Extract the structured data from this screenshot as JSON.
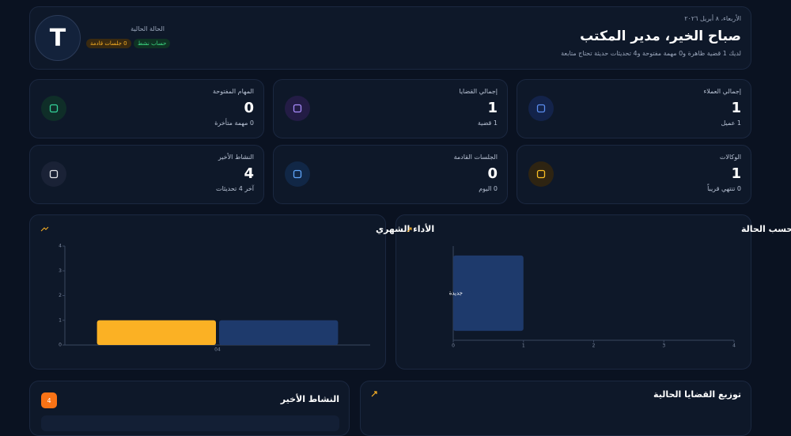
{
  "header": {
    "date": "الأربعاء، ٨ أبريل ٢٠٢٦",
    "title": "صباح الخير، مدير المكتب",
    "subtitle": "لديك 1 قضية ظاهرة و0 مهمة مفتوحة و4 تحديثات حديثة تحتاج متابعة",
    "avatar": "T",
    "status_label": "الحالة الحالية",
    "badges": [
      "حساب نشط",
      "0 جلسات قادمة"
    ]
  },
  "stats": [
    {
      "label": "إجمالي العملاء",
      "value": 1,
      "note": "1 عميل"
    },
    {
      "label": "إجمالي القضايا",
      "value": 1,
      "note": "1 قضية"
    },
    {
      "label": "المهام المفتوحة",
      "value": 0,
      "note": "0 مهمة متأخرة"
    },
    {
      "label": "الوكالات",
      "value": 1,
      "note": "0 تنتهي قريباً"
    },
    {
      "label": "الجلسات القادمة",
      "value": 0,
      "note": "0 اليوم"
    },
    {
      "label": "النشاط الأخير",
      "value": 4,
      "note": "آخر 4 تحديثات"
    }
  ],
  "chart_data": [
    {
      "type": "bar",
      "title": "الأداء الشهري",
      "categories": [
        "04"
      ],
      "series": [
        {
          "color": "#fbb124",
          "values": [
            1
          ]
        },
        {
          "color": "#1e3a6c",
          "values": [
            1
          ]
        }
      ],
      "ylim": [
        0,
        4
      ],
      "yticks": [
        0,
        1,
        2,
        3,
        4
      ]
    },
    {
      "type": "hbar",
      "title": "القضايا حسب الحالة",
      "categories": [
        "جديدة"
      ],
      "values": [
        1
      ],
      "color": "#1e3a6c",
      "xlim": [
        0,
        4
      ],
      "xticks": [
        0,
        1,
        2,
        3,
        4
      ]
    }
  ],
  "panels": {
    "activity": {
      "title": "النشاط الأخير",
      "count": 4
    },
    "distribution": {
      "title": "توزيع القضايا الحالية"
    }
  }
}
